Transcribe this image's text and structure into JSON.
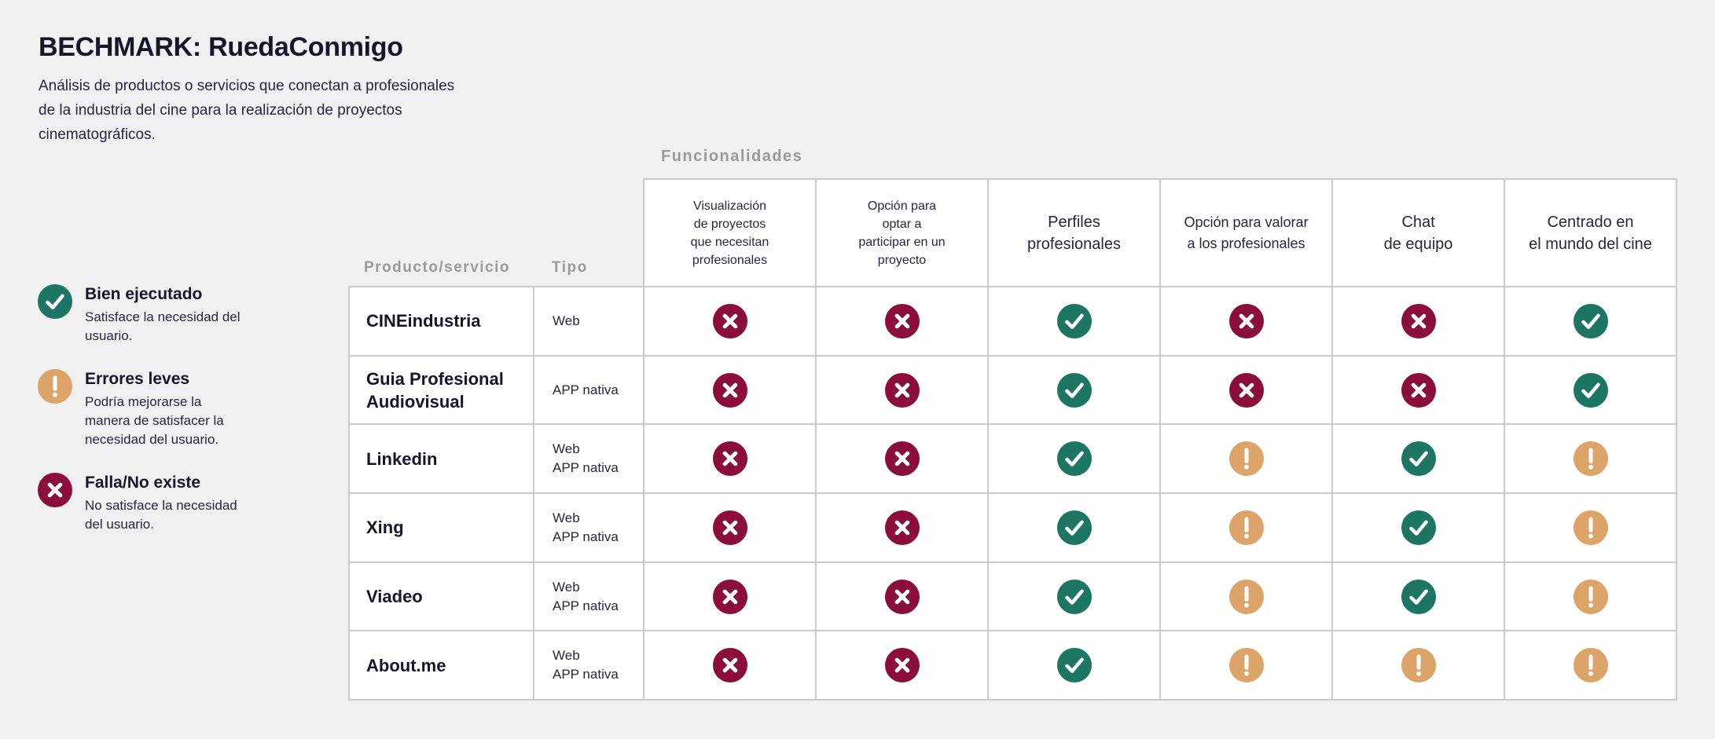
{
  "page": {
    "title": "BECHMARK: RuedaConmigo",
    "description": "Análisis de productos o servicios que conectan a profesionales\nde la industria del cine para la realización de proyectos\ncinematográficos."
  },
  "legend": {
    "items": [
      {
        "state": "pass",
        "icon": "check-circle-icon",
        "title": "Bien ejecutado",
        "description": "Satisface la necesidad del\nusuario."
      },
      {
        "state": "warn",
        "icon": "warning-circle-icon",
        "title": "Errores leves",
        "description": "Podría mejorarse la\nmanera de satisfacer la\nnecesidad del usuario."
      },
      {
        "state": "fail",
        "icon": "cross-circle-icon",
        "title": "Falla/No existe",
        "description": "No satisface la necesidad\ndel usuario."
      }
    ]
  },
  "table": {
    "group_label": "Funcionalidades",
    "product_header": "Producto/servicio",
    "type_header": "Tipo",
    "feature_columns": [
      {
        "label": "Visualización\nde proyectos\nque necesitan\nprofesionales"
      },
      {
        "label": "Opción para\noptar a\nparticipar en un\nproyecto"
      },
      {
        "label": "Perfiles\nprofesionales"
      },
      {
        "label": "Opción para valorar\na los profesionales"
      },
      {
        "label": "Chat\nde equipo"
      },
      {
        "label": "Centrado en\nel mundo del cine"
      }
    ],
    "rows": [
      {
        "product": "CINEindustria",
        "type": "Web",
        "values": [
          "fail",
          "fail",
          "pass",
          "fail",
          "fail",
          "pass"
        ]
      },
      {
        "product": "Guia Profesional Audiovisual",
        "type": "APP nativa",
        "values": [
          "fail",
          "fail",
          "pass",
          "fail",
          "fail",
          "pass"
        ]
      },
      {
        "product": "Linkedin",
        "type": "Web\nAPP nativa",
        "values": [
          "fail",
          "fail",
          "pass",
          "warn",
          "pass",
          "warn"
        ]
      },
      {
        "product": "Xing",
        "type": "Web\nAPP nativa",
        "values": [
          "fail",
          "fail",
          "pass",
          "warn",
          "pass",
          "warn"
        ]
      },
      {
        "product": "Viadeo",
        "type": "Web\nAPP nativa",
        "values": [
          "fail",
          "fail",
          "pass",
          "warn",
          "pass",
          "warn"
        ]
      },
      {
        "product": "About.me",
        "type": "Web\nAPP nativa",
        "values": [
          "fail",
          "fail",
          "pass",
          "warn",
          "warn",
          "warn"
        ]
      }
    ]
  },
  "colors": {
    "pass": "#1d7564",
    "warn": "#dda46a",
    "fail": "#8b0e3a",
    "background": "#f1f1f2",
    "border": "#cbcbcb",
    "dark_text": "#15152c",
    "body_text": "#262640",
    "muted_text": "#9a9a9a"
  }
}
